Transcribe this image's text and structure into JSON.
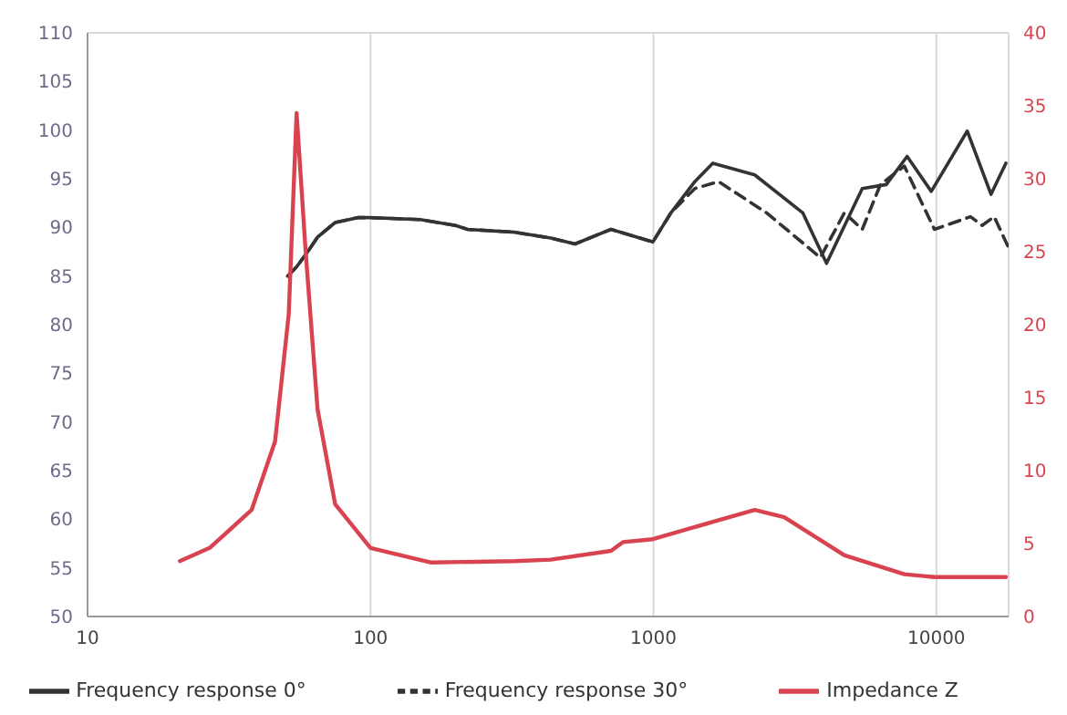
{
  "chart_data": {
    "type": "line",
    "log": "x",
    "grid": true,
    "legend": "bottom",
    "marker": "none",
    "xlim": [
      10,
      18000
    ],
    "xticks": [
      10,
      100,
      1000,
      10000
    ],
    "ylim": [
      50,
      110
    ],
    "yticks": [
      50,
      55,
      60,
      65,
      70,
      75,
      80,
      85,
      90,
      95,
      100,
      105,
      110
    ],
    "y2lim": [
      0,
      40
    ],
    "y2ticks": [
      0,
      5,
      10,
      15,
      20,
      25,
      30,
      35,
      40
    ],
    "series": [
      {
        "name": "Frequency response 0°",
        "color": "#333333",
        "line_style": "solid",
        "x": [
          51,
          55,
          60,
          65,
          75,
          90,
          100,
          150,
          200,
          220,
          324,
          434,
          528,
          708,
          995,
          1153,
          1400,
          1620,
          2280,
          3370,
          4090,
          5470,
          6650,
          7880,
          9590,
          12850,
          15600,
          17600
        ],
        "values": [
          85,
          86,
          87.5,
          89,
          90.5,
          91,
          91,
          90.8,
          90.2,
          89.8,
          89.5,
          88.9,
          88.3,
          89.8,
          88.5,
          91.5,
          94.7,
          96.6,
          95.4,
          91.5,
          86.3,
          94,
          94.4,
          97.3,
          93.7,
          99.9,
          93.4,
          96.6
        ]
      },
      {
        "name": "Frequency response 30°",
        "color": "#333333",
        "line_style": "dashed",
        "x": [
          51,
          55,
          60,
          65,
          75,
          90,
          100,
          150,
          200,
          220,
          324,
          434,
          528,
          708,
          995,
          1153,
          1400,
          1700,
          2510,
          3890,
          4730,
          5470,
          6340,
          7700,
          9840,
          13200,
          14500,
          16000,
          18000
        ],
        "values": [
          85,
          86,
          87.5,
          89,
          90.5,
          91,
          91,
          90.8,
          90.2,
          89.8,
          89.5,
          88.9,
          88.3,
          89.8,
          88.5,
          91.5,
          94,
          94.7,
          91.5,
          86.9,
          91.5,
          89.8,
          94.4,
          96.3,
          89.8,
          91.1,
          90.2,
          91.1,
          87.9
        ]
      },
      {
        "name": "Impedance Z",
        "color": "#d9434f",
        "line_style": "solid",
        "axis": "y2",
        "x": [
          21.2,
          27,
          38,
          46,
          51.4,
          54.8,
          59,
          65,
          75,
          100,
          164,
          324,
          434,
          708,
          780,
          995,
          1700,
          2280,
          2900,
          4730,
          7700,
          9840,
          17600
        ],
        "values": [
          3.8,
          4.7,
          7.3,
          12,
          20.7,
          34.5,
          25,
          14.2,
          7.7,
          4.7,
          3.7,
          3.8,
          3.9,
          4.5,
          5.1,
          5.3,
          6.6,
          7.3,
          6.8,
          4.2,
          2.9,
          2.7,
          2.7
        ]
      }
    ]
  }
}
